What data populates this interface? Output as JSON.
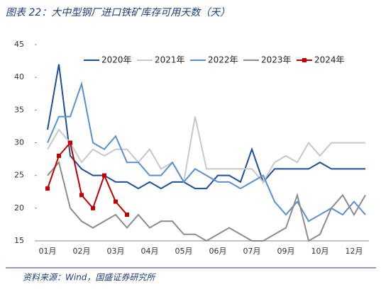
{
  "chart_data": {
    "type": "line",
    "title": "图表 22：大中型钢厂进口铁矿库存可用天数（天）",
    "source": "资料来源：Wind，国盛证券研究所",
    "categories": [
      "01月",
      null,
      null,
      "02月",
      null,
      null,
      "03月",
      null,
      null,
      "04月",
      null,
      null,
      "05月",
      null,
      null,
      "06月",
      null,
      null,
      "07月",
      null,
      null,
      "09月",
      null,
      null,
      "10月",
      null,
      null,
      "12月",
      null
    ],
    "ylim": [
      15,
      45
    ],
    "yticks": [
      15,
      20,
      25,
      30,
      35,
      40,
      45
    ],
    "series": [
      {
        "name": "2020年",
        "color": "#1f4e99",
        "values": [
          32,
          42,
          28,
          26,
          25,
          25,
          24,
          24,
          23,
          24,
          23,
          24,
          24,
          23,
          23,
          25,
          25,
          24,
          29,
          24,
          26,
          26,
          26,
          26,
          27,
          26,
          26,
          26,
          26
        ]
      },
      {
        "name": "2021年",
        "color": "#c8c8c8",
        "values": [
          29,
          32,
          30,
          27,
          29,
          28,
          29,
          29,
          27,
          29,
          26,
          27,
          24,
          34,
          26,
          26,
          26,
          26,
          26,
          24,
          27,
          28,
          27,
          30,
          28,
          30,
          30,
          30,
          30
        ]
      },
      {
        "name": "2022年",
        "color": "#5b8fd0",
        "values": [
          30,
          34,
          34,
          39,
          30,
          29,
          31,
          27,
          27,
          25,
          25,
          27,
          24,
          26,
          25,
          24,
          24,
          23,
          24,
          25,
          21,
          19,
          21,
          18,
          19,
          20,
          19,
          21,
          19
        ]
      },
      {
        "name": "2023年",
        "color": "#8c8c8c",
        "values": [
          25,
          27,
          20,
          18,
          17,
          18,
          19,
          17,
          19,
          17,
          18,
          18,
          16,
          16,
          15,
          16,
          17,
          16,
          15,
          15,
          16,
          17,
          22,
          15,
          16,
          20,
          22,
          19,
          22
        ]
      },
      {
        "name": "2024年",
        "color": "#c00000",
        "markers": true,
        "values": [
          23,
          28,
          30,
          22,
          20,
          25,
          21,
          19,
          null,
          null,
          null,
          null,
          null,
          null,
          null,
          null,
          null,
          null,
          null,
          null,
          null,
          null,
          null,
          null,
          null,
          null,
          null,
          null,
          null
        ]
      }
    ]
  }
}
